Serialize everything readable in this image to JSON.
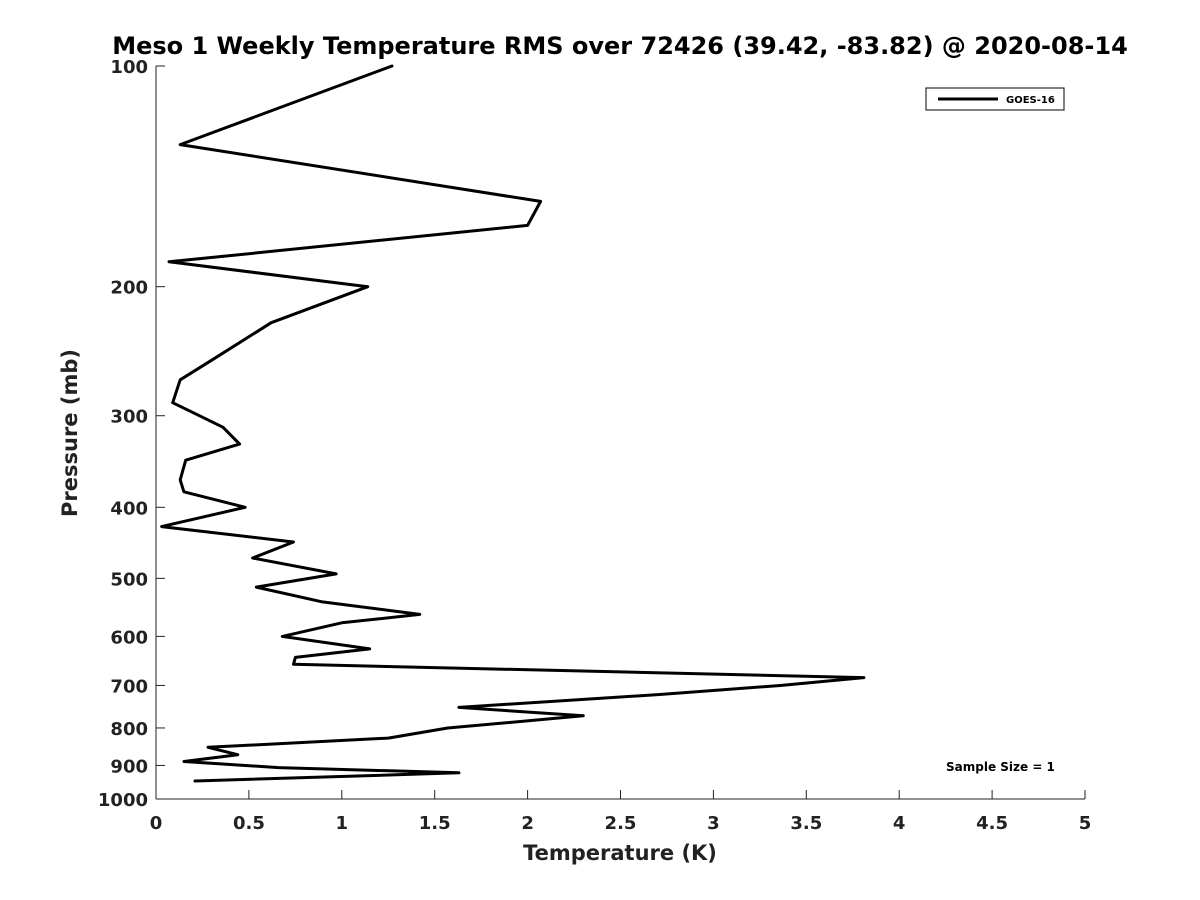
{
  "chart_data": {
    "type": "line",
    "title": "Meso 1 Weekly Temperature RMS over 72426 (39.42, -83.82) @ 2020-08-14",
    "xlabel": "Temperature (K)",
    "ylabel": "Pressure (mb)",
    "xlim": [
      0,
      5
    ],
    "ylim": [
      100,
      1000
    ],
    "y_scale": "log",
    "y_reversed": true,
    "grid": false,
    "legend_position": "top-right",
    "x_ticks": [
      0,
      0.5,
      1,
      1.5,
      2,
      2.5,
      3,
      3.5,
      4,
      4.5,
      5
    ],
    "x_tick_labels": [
      "0",
      "0.5",
      "1",
      "1.5",
      "2",
      "2.5",
      "3",
      "3.5",
      "4",
      "4.5",
      "5"
    ],
    "y_ticks": [
      100,
      200,
      300,
      400,
      500,
      600,
      700,
      800,
      900,
      1000
    ],
    "y_tick_labels": [
      "100",
      "200",
      "300",
      "400",
      "500",
      "600",
      "700",
      "800",
      "900",
      "1000"
    ],
    "annotation": "Sample Size = 1",
    "series": [
      {
        "name": "GOES-16",
        "color": "#000000",
        "x": [
          1.27,
          0.13,
          2.07,
          2.0,
          0.07,
          1.14,
          0.62,
          0.3,
          0.13,
          0.09,
          0.36,
          0.45,
          0.16,
          0.13,
          0.15,
          0.48,
          0.03,
          0.74,
          0.52,
          0.97,
          0.54,
          0.89,
          1.42,
          1.0,
          0.68,
          1.15,
          0.75,
          0.74,
          3.81,
          3.36,
          2.72,
          1.63,
          2.3,
          1.57,
          1.25,
          0.28,
          0.44,
          0.15,
          0.66,
          1.63,
          0.21
        ],
        "y": [
          100,
          128,
          153,
          165,
          185,
          200,
          224,
          252,
          268,
          288,
          311,
          328,
          345,
          367,
          381,
          400,
          425,
          446,
          469,
          493,
          514,
          538,
          560,
          575,
          600,
          624,
          641,
          655,
          683,
          700,
          720,
          750,
          770,
          800,
          826,
          850,
          870,
          889,
          906,
          921,
          945
        ]
      }
    ]
  }
}
